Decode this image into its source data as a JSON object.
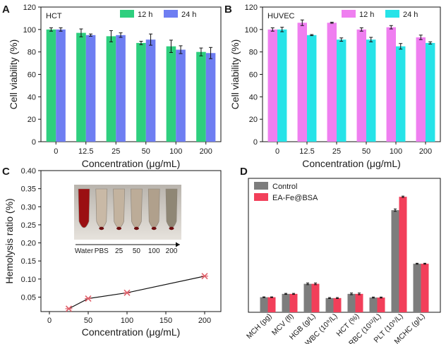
{
  "chart_data": [
    {
      "panel": "A",
      "type": "bar",
      "label_text": "HCT",
      "xlabel": "Concentration (μg/mL)",
      "ylabel": "Cell viability (%)",
      "ylim": [
        0,
        120
      ],
      "yticks": [
        "0",
        "20",
        "40",
        "60",
        "80",
        "100",
        "120"
      ],
      "categories": [
        "0",
        "12.5",
        "25",
        "50",
        "100",
        "200"
      ],
      "series": [
        {
          "name": "12 h",
          "color": "#2ecf7e",
          "values": [
            100,
            97,
            94,
            88,
            85,
            80
          ],
          "errors": [
            1.5,
            3.5,
            5,
            1.5,
            5.5,
            3.5
          ]
        },
        {
          "name": "24 h",
          "color": "#6e7ef2",
          "values": [
            100,
            95,
            95,
            91,
            82,
            79
          ],
          "errors": [
            1.5,
            1,
            2,
            5,
            3.5,
            5
          ]
        }
      ],
      "legend_position": "top-right"
    },
    {
      "panel": "B",
      "type": "bar",
      "label_text": "HUVEC",
      "xlabel": "Concentration (μg/mL)",
      "ylabel": "Cell viability (%)",
      "ylim": [
        0,
        120
      ],
      "yticks": [
        "0",
        "20",
        "40",
        "60",
        "80",
        "100",
        "120"
      ],
      "categories": [
        "0",
        "12.5",
        "25",
        "50",
        "100",
        "200"
      ],
      "series": [
        {
          "name": "12 h",
          "color": "#ef7ff0",
          "values": [
            100,
            106,
            106,
            100,
            102,
            93
          ],
          "errors": [
            1.5,
            2.5,
            0.5,
            1.5,
            1.5,
            2
          ]
        },
        {
          "name": "24 h",
          "color": "#26e3e8",
          "values": [
            100,
            95,
            91,
            91,
            85,
            88
          ],
          "errors": [
            2,
            0.5,
            1.5,
            2,
            2.5,
            1
          ]
        }
      ],
      "legend_position": "top-right"
    },
    {
      "panel": "C",
      "type": "line",
      "xlabel": "Concentration (μg/mL)",
      "ylabel": "Hemolysis ratio (%)",
      "xlim": [
        0,
        200
      ],
      "ylim": [
        0.01,
        0.4
      ],
      "xticks": [
        "0",
        "50",
        "100",
        "150",
        "200"
      ],
      "yticks": [
        "0.05",
        "0.10",
        "0.15",
        "0.20",
        "0.25",
        "0.30",
        "0.35",
        "0.40"
      ],
      "x": [
        25,
        50,
        100,
        200
      ],
      "y": [
        0.018,
        0.046,
        0.062,
        0.108
      ],
      "inset_labels": [
        "Water",
        "PBS",
        "25",
        "50",
        "100",
        "200"
      ]
    },
    {
      "panel": "D",
      "type": "bar",
      "categories": [
        "MCH (pg)",
        "MCV (fl)",
        "HGB (g/L)",
        "WBC (10⁹/L)",
        "HCT (%)",
        "RBC (10¹²/L)",
        "PLT (10⁹/L)",
        "MCHC (g/L)"
      ],
      "series": [
        {
          "name": "Control",
          "color": "#7d7d7d",
          "values": [
            0.9,
            1.1,
            1.7,
            0.85,
            1.1,
            0.88,
            6.1,
            2.9
          ],
          "errors": [
            0.02,
            0.03,
            0.05,
            0.03,
            0.05,
            0.03,
            0.07,
            0.03
          ]
        },
        {
          "name": "EA-Fe@BSA",
          "color": "#f23f5a",
          "values": [
            0.9,
            1.1,
            1.7,
            0.85,
            1.1,
            0.88,
            6.9,
            2.9
          ],
          "errors": [
            0.02,
            0.03,
            0.05,
            0.03,
            0.05,
            0.03,
            0.04,
            0.03
          ]
        }
      ],
      "ylim": [
        0,
        8
      ],
      "legend_position": "top-left"
    }
  ]
}
